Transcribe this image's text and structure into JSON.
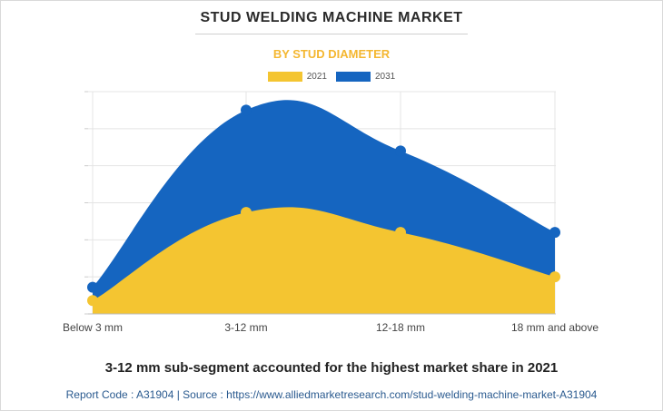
{
  "header": {
    "title": "STUD WELDING MACHINE MARKET",
    "subtitle": "BY STUD DIAMETER"
  },
  "colors": {
    "series_2021": "#f4c531",
    "series_2031": "#1565c0",
    "subtitle": "#f4b731",
    "grid": "#e4e4e4"
  },
  "chart_data": {
    "type": "area",
    "categories": [
      "Below 3 mm",
      "3-12 mm",
      "12-18 mm",
      "18 mm and above"
    ],
    "series": [
      {
        "name": "2031",
        "values": [
          36,
          275,
          220,
          110
        ]
      },
      {
        "name": "2021",
        "values": [
          18,
          137,
          110,
          50
        ]
      }
    ],
    "ylim": [
      0,
      300
    ],
    "stacked": false,
    "grid": true,
    "legend_position": "top-center",
    "xlabel": "",
    "ylabel": ""
  },
  "footer": {
    "note": "3-12 mm sub-segment accounted for the highest market share in 2021",
    "source": "Report Code : A31904  |  Source : https://www.alliedmarketresearch.com/stud-welding-machine-market-A31904"
  }
}
